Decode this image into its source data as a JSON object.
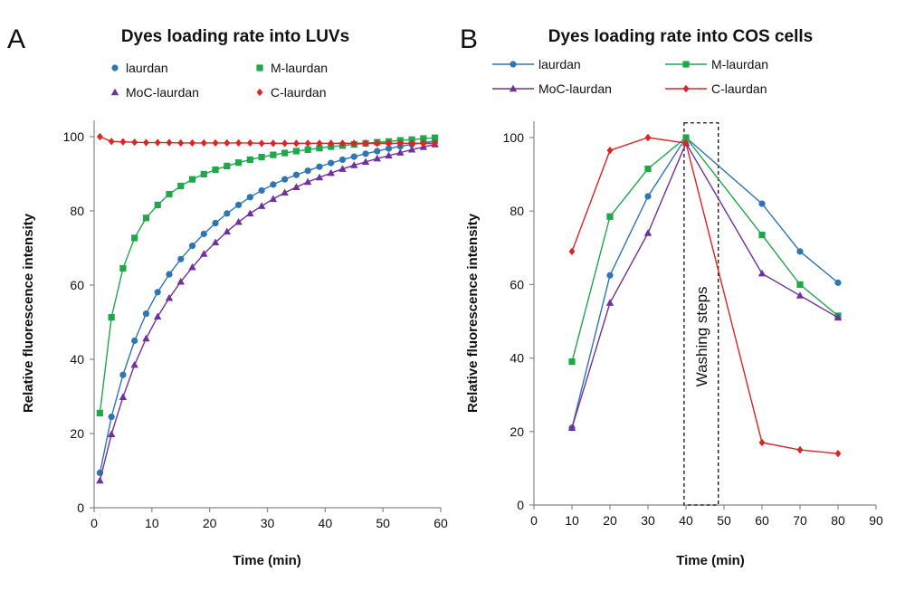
{
  "chart_data": [
    {
      "panel": "A",
      "type": "scatter",
      "title": "Dyes loading rate into LUVs",
      "xlabel": "Time (min)",
      "ylabel": "Relative fluorescence intensity",
      "xlim": [
        0,
        60
      ],
      "ylim": [
        0,
        100
      ],
      "xticks": [
        0,
        10,
        20,
        30,
        40,
        50,
        60
      ],
      "yticks": [
        0,
        20,
        40,
        60,
        80,
        100
      ],
      "grid": false,
      "legend_position": "top",
      "x": [
        1,
        3,
        5,
        7,
        9,
        11,
        13,
        15,
        17,
        19,
        21,
        23,
        25,
        27,
        29,
        31,
        33,
        35,
        37,
        39,
        41,
        43,
        45,
        47,
        49,
        51,
        53,
        55,
        57,
        59
      ],
      "series": [
        {
          "name": "laurdan",
          "color": "#2e75b6",
          "marker": "circle",
          "values": [
            9.4,
            24.5,
            35.8,
            45.0,
            52.3,
            58.1,
            62.9,
            67.0,
            70.6,
            73.8,
            76.7,
            79.3,
            81.6,
            83.7,
            85.5,
            87.1,
            88.5,
            89.7,
            90.8,
            91.9,
            92.9,
            93.8,
            94.6,
            95.4,
            96.1,
            96.8,
            97.4,
            97.9,
            98.4,
            98.8
          ]
        },
        {
          "name": "M-laurdan",
          "color": "#1fa74a",
          "marker": "square",
          "values": [
            25.5,
            51.3,
            64.5,
            72.7,
            78.1,
            81.6,
            84.5,
            86.7,
            88.5,
            89.9,
            91.1,
            92.1,
            93.0,
            93.8,
            94.5,
            95.1,
            95.6,
            96.1,
            96.5,
            96.9,
            97.3,
            97.6,
            97.9,
            98.2,
            98.5,
            98.7,
            99.0,
            99.2,
            99.5,
            99.7
          ]
        },
        {
          "name": "MoC-laurdan",
          "color": "#7030a0",
          "marker": "triangle",
          "values": [
            7.3,
            19.8,
            29.8,
            38.5,
            45.6,
            51.5,
            56.5,
            60.9,
            64.8,
            68.4,
            71.5,
            74.4,
            77.0,
            79.3,
            81.3,
            83.2,
            84.9,
            86.4,
            87.8,
            89.0,
            90.2,
            91.3,
            92.3,
            93.2,
            94.1,
            94.9,
            95.7,
            96.5,
            97.2,
            97.9
          ]
        },
        {
          "name": "C-laurdan",
          "color": "#e02222",
          "marker": "diamond",
          "values": [
            100,
            98.7,
            98.6,
            98.5,
            98.4,
            98.4,
            98.4,
            98.3,
            98.3,
            98.3,
            98.3,
            98.3,
            98.3,
            98.3,
            98.2,
            98.2,
            98.2,
            98.2,
            98.2,
            98.2,
            98.2,
            98.2,
            98.2,
            98.2,
            98.2,
            98.2,
            98.2,
            98.2,
            98.2,
            98.2
          ]
        }
      ]
    },
    {
      "panel": "B",
      "type": "line",
      "title": "Dyes loading rate into COS cells",
      "xlabel": "Time (min)",
      "ylabel": "Relative fluorescence intensity",
      "xlim": [
        0,
        90
      ],
      "ylim": [
        0,
        100
      ],
      "xticks": [
        0,
        10,
        20,
        30,
        40,
        50,
        60,
        70,
        80,
        90
      ],
      "yticks": [
        0,
        20,
        40,
        60,
        80,
        100
      ],
      "grid": false,
      "legend_position": "top",
      "x": [
        10,
        20,
        30,
        40,
        60,
        70,
        80
      ],
      "annotation": {
        "text": "Washing steps",
        "x_range": [
          39.5,
          48.5
        ],
        "y_range": [
          0,
          104
        ]
      },
      "series": [
        {
          "name": "laurdan",
          "color": "#2e75b6",
          "marker": "circle",
          "values": [
            21,
            62.5,
            84,
            100,
            82,
            69,
            60.5
          ]
        },
        {
          "name": "M-laurdan",
          "color": "#1fa74a",
          "marker": "square",
          "values": [
            39,
            78.5,
            91.5,
            100,
            73.5,
            60,
            51.5
          ]
        },
        {
          "name": "MoC-laurdan",
          "color": "#7030a0",
          "marker": "triangle",
          "values": [
            21,
            55,
            74,
            98.5,
            63,
            57,
            51
          ]
        },
        {
          "name": "C-laurdan",
          "color": "#e02222",
          "marker": "diamond",
          "values": [
            69,
            96.5,
            100,
            98.5,
            17,
            15,
            14
          ]
        }
      ]
    }
  ]
}
